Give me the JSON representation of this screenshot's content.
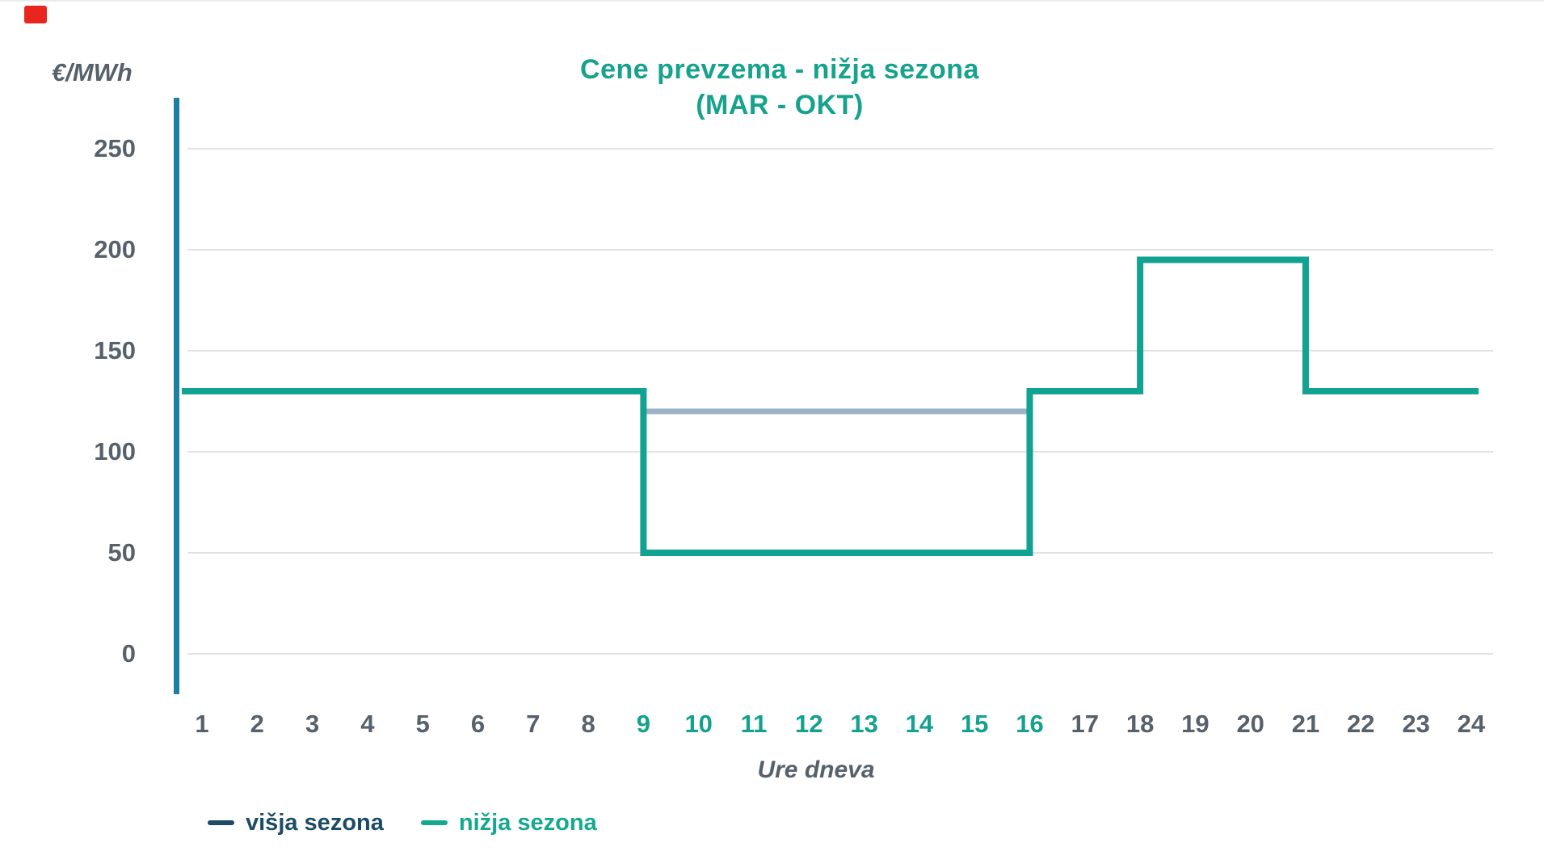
{
  "page": {
    "top_left_marker_color": "#e8261f"
  },
  "chart_data": {
    "type": "line",
    "subtype": "step",
    "title_line1": "Cene prevzema - nižja sezona",
    "title_line2": "(MAR - OKT)",
    "title": "Cene prevzema - nižja sezona (MAR - OKT)",
    "ylabel": "€/MWh",
    "xlabel": "Ure dneva",
    "x": [
      1,
      2,
      3,
      4,
      5,
      6,
      7,
      8,
      9,
      10,
      11,
      12,
      13,
      14,
      15,
      16,
      17,
      18,
      19,
      20,
      21,
      22,
      23,
      24
    ],
    "yticks": [
      250,
      200,
      150,
      100,
      50,
      0
    ],
    "ylim": [
      0,
      275
    ],
    "grid": true,
    "legend_position": "bottom-left",
    "xtick_highlight": {
      "from_hour": 9,
      "to_hour": 16
    },
    "series": [
      {
        "name": "višja sezona",
        "visible_segment": {
          "from_hour": 9,
          "to_hour": 16,
          "value": 120
        }
      },
      {
        "name": "nižja sezona",
        "steps": [
          {
            "from_hour": 1,
            "to_hour": 9,
            "value": 130
          },
          {
            "from_hour": 9,
            "to_hour": 16,
            "value": 50
          },
          {
            "from_hour": 16,
            "to_hour": 18,
            "value": 130
          },
          {
            "from_hour": 18,
            "to_hour": 21,
            "value": 195
          },
          {
            "from_hour": 21,
            "to_hour": 24,
            "value": 130
          }
        ],
        "hourly_values": [
          130,
          130,
          130,
          130,
          130,
          130,
          130,
          130,
          50,
          50,
          50,
          50,
          50,
          50,
          50,
          130,
          130,
          195,
          195,
          195,
          130,
          130,
          130,
          130
        ]
      }
    ],
    "legend": [
      {
        "label": "višja sezona",
        "color": "#1c4b66"
      },
      {
        "label": "nižja sezona",
        "color": "#16a88f"
      }
    ]
  },
  "colors": {
    "title_teal": "#16a28d",
    "series_teal": "#12a291",
    "series_visja_segment": "#9cb3c7",
    "axis_blue": "#1c7fa4",
    "axis_dark": "#123f5e",
    "tick_gray": "#57616b",
    "tick_teal": "#14a18d",
    "grid_gray": "#d9d9d9"
  }
}
